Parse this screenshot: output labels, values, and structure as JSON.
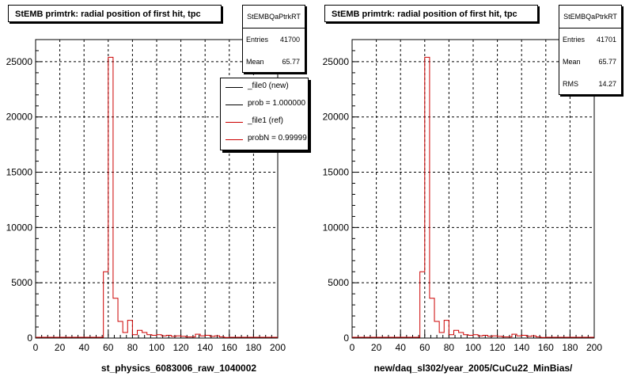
{
  "colors": {
    "new": "#000000",
    "ref": "#cc0000"
  },
  "chart_data": [
    {
      "type": "bar",
      "title": "StEMB primtrk: radial position of first hit, tpc",
      "xlabel": "st_physics_6083006_raw_1040002",
      "ylabel": "",
      "xlim": [
        0,
        200
      ],
      "ylim": [
        0,
        27000
      ],
      "xticks": [
        0,
        20,
        40,
        60,
        80,
        100,
        120,
        140,
        160,
        180,
        200
      ],
      "yticks": [
        0,
        5000,
        10000,
        15000,
        20000,
        25000
      ],
      "grid": true,
      "bin_width": 4,
      "stats": {
        "name": "StEMBQaPtrkRT",
        "entries_label": "Entries",
        "entries": "41700",
        "mean_label": "Mean",
        "mean": "65.77"
      },
      "legend": {
        "position": "top-right",
        "entries": [
          {
            "label": "_file0 (new)",
            "color": "#000000"
          },
          {
            "label": "prob = 1.000000",
            "color": "#000000"
          },
          {
            "label": "_file1 (ref)",
            "color": "#cc0000"
          },
          {
            "label": "probN = 0.99999",
            "color": "#cc0000"
          }
        ]
      },
      "series": [
        {
          "name": "_file1 (ref)",
          "x": [
            56,
            60,
            64,
            68,
            72,
            76,
            80,
            84,
            88,
            92,
            96,
            100,
            104,
            108,
            112,
            116,
            120,
            124,
            128,
            132,
            136,
            140,
            144,
            148,
            152,
            156
          ],
          "values": [
            6000,
            25400,
            3600,
            1500,
            500,
            1600,
            300,
            700,
            500,
            300,
            250,
            300,
            200,
            250,
            150,
            200,
            150,
            100,
            100,
            350,
            200,
            250,
            150,
            200,
            100,
            50
          ]
        }
      ]
    },
    {
      "type": "bar",
      "title": "StEMB primtrk: radial position of first hit, tpc",
      "xlabel": "new/daq_sl302/year_2005/CuCu22_MinBias/",
      "ylabel": "",
      "xlim": [
        0,
        200
      ],
      "ylim": [
        0,
        27000
      ],
      "xticks": [
        0,
        20,
        40,
        60,
        80,
        100,
        120,
        140,
        160,
        180,
        200
      ],
      "yticks": [
        0,
        5000,
        10000,
        15000,
        20000,
        25000
      ],
      "grid": true,
      "bin_width": 4,
      "stats": {
        "name": "StEMBQaPtrkRT",
        "entries_label": "Entries",
        "entries": "41701",
        "mean_label": "Mean",
        "mean": "65.77",
        "rms_label": "RMS",
        "rms": "14.27"
      },
      "series": [
        {
          "name": "",
          "x": [
            56,
            60,
            64,
            68,
            72,
            76,
            80,
            84,
            88,
            92,
            96,
            100,
            104,
            108,
            112,
            116,
            120,
            124,
            128,
            132,
            136,
            140,
            144,
            148,
            152,
            156
          ],
          "values": [
            6000,
            25400,
            3600,
            1500,
            500,
            1600,
            300,
            700,
            500,
            300,
            250,
            300,
            200,
            250,
            150,
            200,
            150,
            100,
            100,
            350,
            200,
            250,
            150,
            200,
            100,
            50
          ]
        }
      ]
    }
  ]
}
